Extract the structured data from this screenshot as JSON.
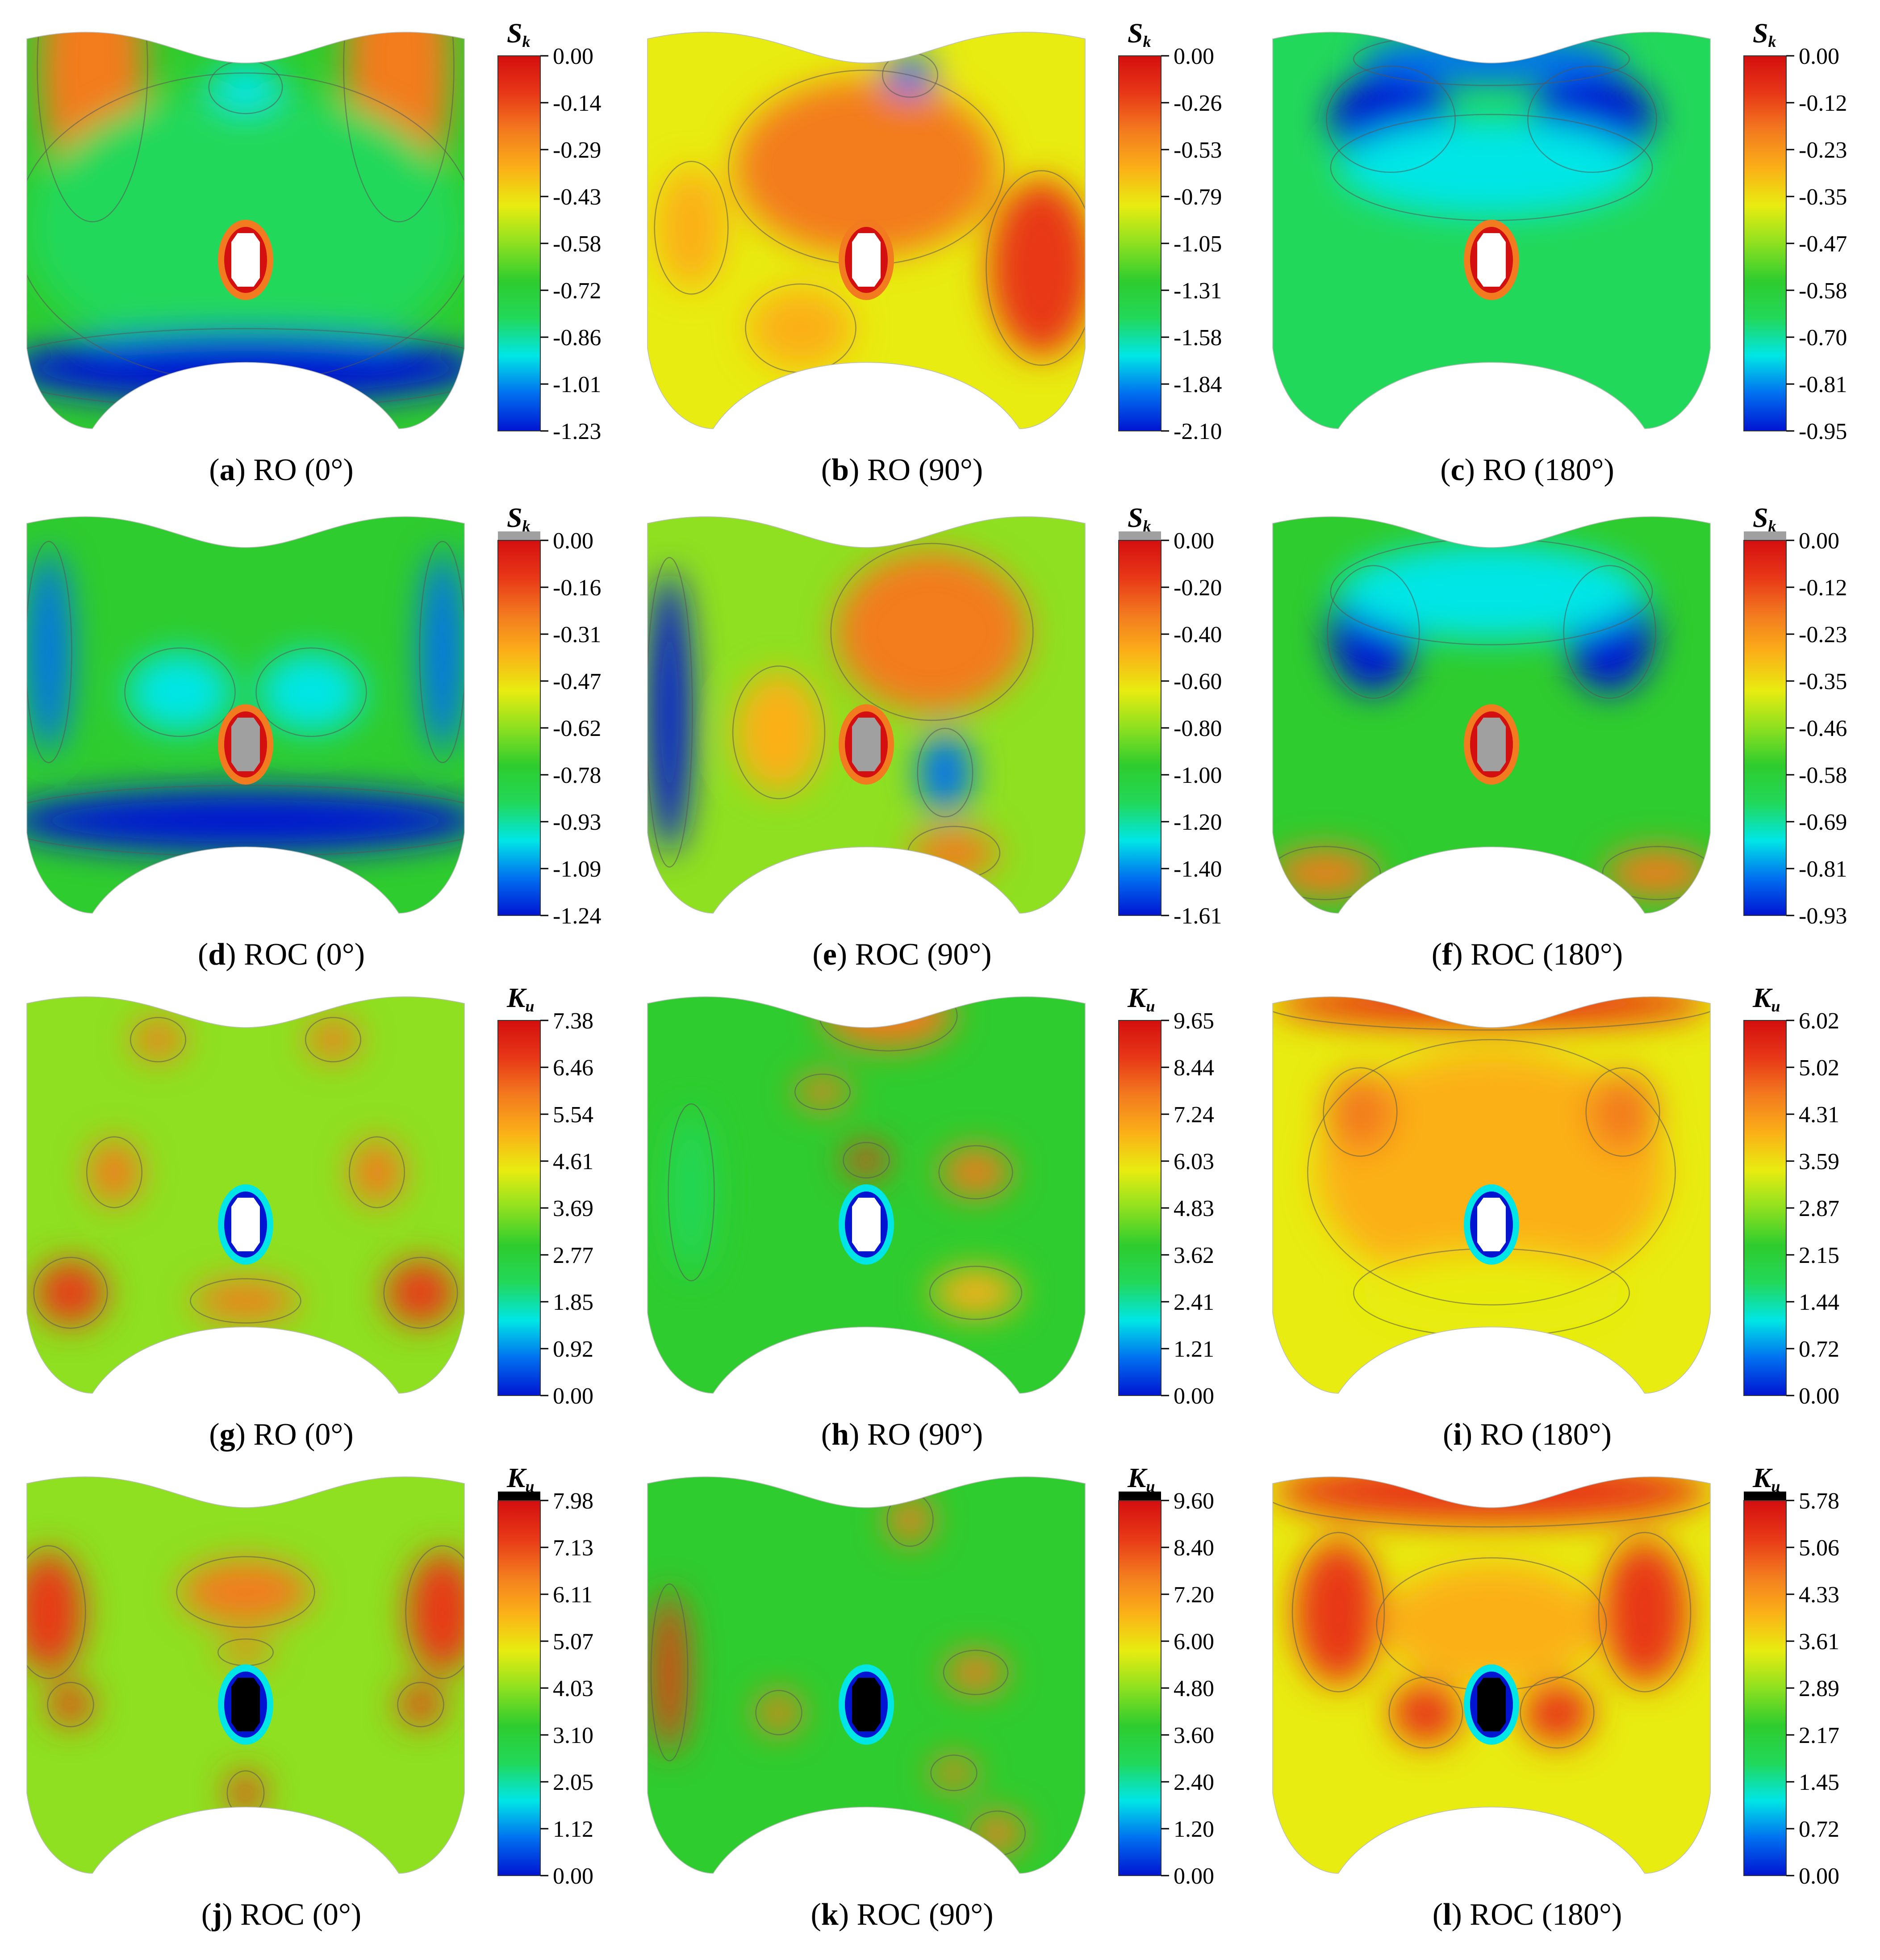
{
  "colorscales": {
    "sk": [
      "#0014d2",
      "#0070f0",
      "#00e6e6",
      "#22d85a",
      "#2ecc2e",
      "#8ee020",
      "#e8ec10",
      "#fbb018",
      "#f37b1f",
      "#e83818",
      "#d40f0f"
    ],
    "ku": [
      "#0014d2",
      "#0070f0",
      "#00e6e6",
      "#22d85a",
      "#2ecc2e",
      "#8ee020",
      "#e8ec10",
      "#fbb018",
      "#f37b1f",
      "#e83818",
      "#d40f0f"
    ]
  },
  "hole_colors": {
    "white": "#ffffff",
    "gray": "#a0a0a0",
    "black": "#000000"
  },
  "panels": [
    {
      "id": "a",
      "letter": "a",
      "caption": "RO (0°)",
      "symbol": "S",
      "sub": "k",
      "ticks": [
        "0.00",
        "-0.14",
        "-0.29",
        "-0.43",
        "-0.58",
        "-0.72",
        "-0.86",
        "-1.01",
        "-1.23"
      ],
      "hole": "white",
      "bar_cap": false,
      "blobs": []
    },
    {
      "id": "b",
      "letter": "b",
      "caption": "RO (90°)",
      "symbol": "S",
      "sub": "k",
      "ticks": [
        "0.00",
        "-0.26",
        "-0.53",
        "-0.79",
        "-1.05",
        "-1.31",
        "-1.58",
        "-1.84",
        "-2.10"
      ],
      "hole": "white",
      "bar_cap": false,
      "blobs": []
    },
    {
      "id": "c",
      "letter": "c",
      "caption": "RO (180°)",
      "symbol": "S",
      "sub": "k",
      "ticks": [
        "0.00",
        "-0.12",
        "-0.23",
        "-0.35",
        "-0.47",
        "-0.58",
        "-0.70",
        "-0.81",
        "-0.95"
      ],
      "hole": "white",
      "bar_cap": false,
      "blobs": []
    },
    {
      "id": "d",
      "letter": "d",
      "caption": "ROC (0°)",
      "symbol": "S",
      "sub": "k",
      "ticks": [
        "0.00",
        "-0.16",
        "-0.31",
        "-0.47",
        "-0.62",
        "-0.78",
        "-0.93",
        "-1.09",
        "-1.24"
      ],
      "hole": "gray",
      "bar_cap": "gray",
      "blobs": []
    },
    {
      "id": "e",
      "letter": "e",
      "caption": "ROC (90°)",
      "symbol": "S",
      "sub": "k",
      "ticks": [
        "0.00",
        "-0.20",
        "-0.40",
        "-0.60",
        "-0.80",
        "-1.00",
        "-1.20",
        "-1.40",
        "-1.61"
      ],
      "hole": "gray",
      "bar_cap": "gray",
      "blobs": []
    },
    {
      "id": "f",
      "letter": "f",
      "caption": "ROC (180°)",
      "symbol": "S",
      "sub": "k",
      "ticks": [
        "0.00",
        "-0.12",
        "-0.23",
        "-0.35",
        "-0.46",
        "-0.58",
        "-0.69",
        "-0.81",
        "-0.93"
      ],
      "hole": "gray",
      "bar_cap": "gray",
      "blobs": []
    },
    {
      "id": "g",
      "letter": "g",
      "caption": "RO (0°)",
      "symbol": "K",
      "sub": "u",
      "ticks": [
        "7.38",
        "6.46",
        "5.54",
        "4.61",
        "3.69",
        "2.77",
        "1.85",
        "0.92",
        "0.00"
      ],
      "hole": "white",
      "bar_cap": false,
      "blobs": []
    },
    {
      "id": "h",
      "letter": "h",
      "caption": "RO (90°)",
      "symbol": "K",
      "sub": "u",
      "ticks": [
        "9.65",
        "8.44",
        "7.24",
        "6.03",
        "4.83",
        "3.62",
        "2.41",
        "1.21",
        "0.00"
      ],
      "hole": "white",
      "bar_cap": false,
      "blobs": []
    },
    {
      "id": "i",
      "letter": "i",
      "caption": "RO (180°)",
      "symbol": "K",
      "sub": "u",
      "ticks": [
        "6.02",
        "5.02",
        "4.31",
        "3.59",
        "2.87",
        "2.15",
        "1.44",
        "0.72",
        "0.00"
      ],
      "hole": "white",
      "bar_cap": false,
      "blobs": []
    },
    {
      "id": "j",
      "letter": "j",
      "caption": "ROC (0°)",
      "symbol": "K",
      "sub": "u",
      "ticks": [
        "7.98",
        "7.13",
        "6.11",
        "5.07",
        "4.03",
        "3.10",
        "2.05",
        "1.12",
        "0.00"
      ],
      "hole": "black",
      "bar_cap": "black",
      "blobs": []
    },
    {
      "id": "k",
      "letter": "k",
      "caption": "ROC (90°)",
      "symbol": "K",
      "sub": "u",
      "ticks": [
        "9.60",
        "8.40",
        "7.20",
        "6.00",
        "4.80",
        "3.60",
        "2.40",
        "1.20",
        "0.00"
      ],
      "hole": "black",
      "bar_cap": "black",
      "blobs": []
    },
    {
      "id": "l",
      "letter": "l",
      "caption": "ROC (180°)",
      "symbol": "K",
      "sub": "u",
      "ticks": [
        "5.78",
        "5.06",
        "4.33",
        "3.61",
        "2.89",
        "2.17",
        "1.45",
        "0.72",
        "0.00"
      ],
      "hole": "black",
      "bar_cap": "black",
      "blobs": []
    }
  ]
}
